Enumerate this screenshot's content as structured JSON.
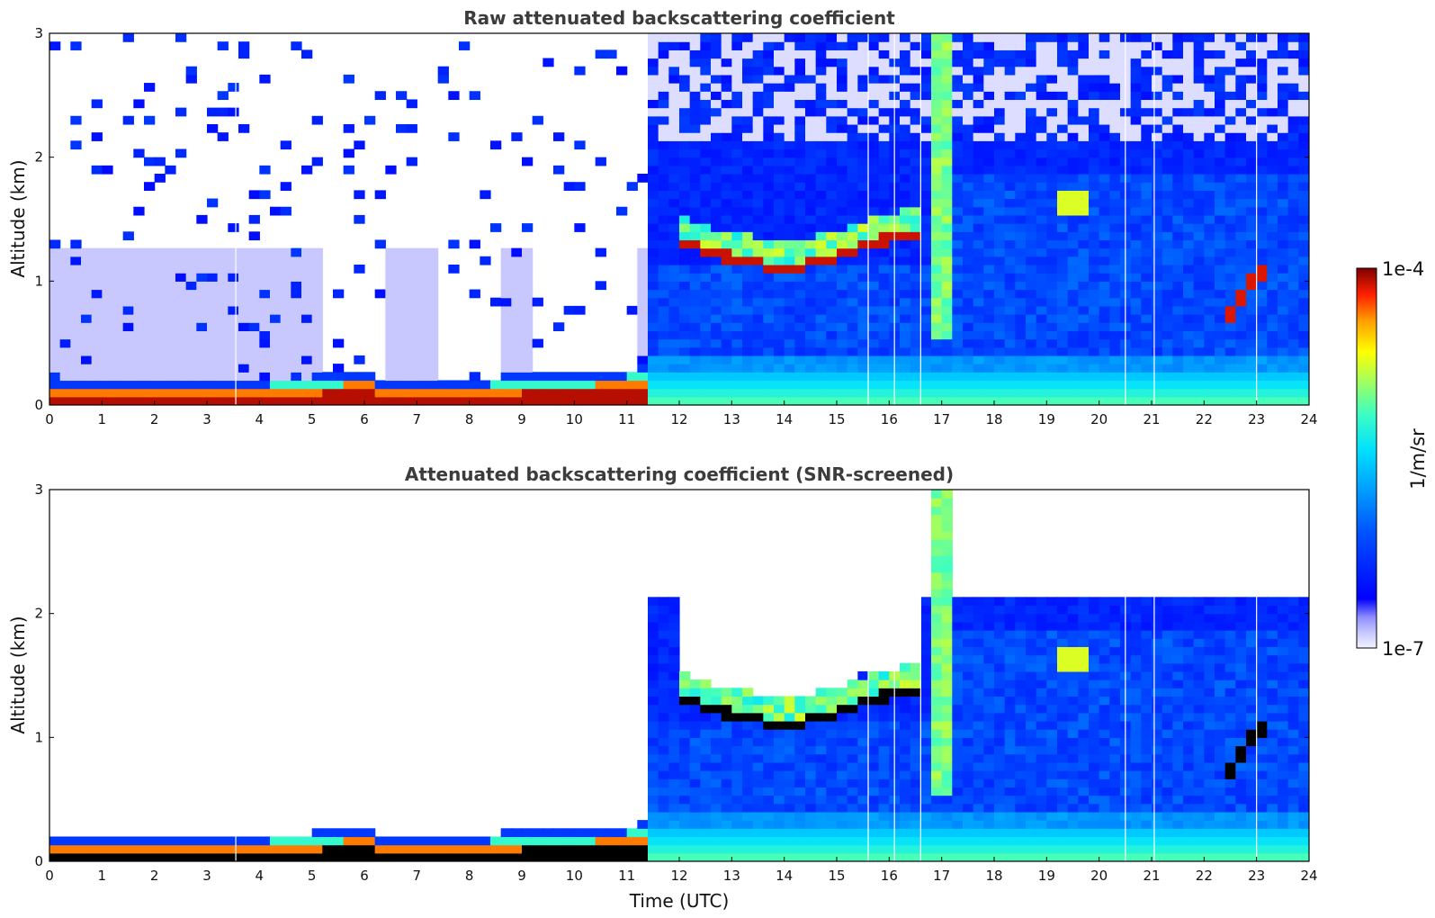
{
  "chart_data": [
    {
      "type": "heatmap",
      "title": "Raw attenuated backscattering coefficient",
      "xlabel": "",
      "ylabel": "Altitude (km)",
      "xlim": [
        0,
        24
      ],
      "ylim": [
        0,
        3
      ],
      "xticks": [
        "0",
        "1",
        "2",
        "3",
        "4",
        "5",
        "6",
        "7",
        "8",
        "9",
        "10",
        "11",
        "12",
        "13",
        "14",
        "15",
        "16",
        "17",
        "18",
        "19",
        "20",
        "21",
        "22",
        "23",
        "24"
      ],
      "yticks": [
        "0",
        "1",
        "2",
        "3"
      ],
      "screened": false
    },
    {
      "type": "heatmap",
      "title": "Attenuated backscattering coefficient (SNR-screened)",
      "xlabel": "Time (UTC)",
      "ylabel": "Altitude (km)",
      "xlim": [
        0,
        24
      ],
      "ylim": [
        0,
        3
      ],
      "xticks": [
        "0",
        "1",
        "2",
        "3",
        "4",
        "5",
        "6",
        "7",
        "8",
        "9",
        "10",
        "11",
        "12",
        "13",
        "14",
        "15",
        "16",
        "17",
        "18",
        "19",
        "20",
        "21",
        "22",
        "23",
        "24"
      ],
      "yticks": [
        "0",
        "1",
        "2",
        "3"
      ],
      "screened": true
    }
  ],
  "colorbar": {
    "label": "1/m/sr",
    "max_label": "1e-4",
    "min_label": "1e-7",
    "range": [
      1e-07,
      0.0001
    ],
    "scale": "log",
    "colormap": "jet"
  },
  "features": {
    "aerosol_layer_top_km": [
      [
        0,
        0.15
      ],
      [
        5,
        0.17
      ],
      [
        6,
        0.24
      ],
      [
        6.4,
        0.14
      ],
      [
        8,
        0.16
      ],
      [
        11,
        0.22
      ],
      [
        11.4,
        0.28
      ]
    ],
    "cloud_base_km": [
      [
        12,
        1.3
      ],
      [
        12.5,
        1.2
      ],
      [
        13,
        1.15
      ],
      [
        13.5,
        1.1
      ],
      [
        14,
        1.05
      ],
      [
        14.5,
        1.1
      ],
      [
        15,
        1.15
      ],
      [
        15.5,
        1.25
      ],
      [
        16,
        1.3
      ],
      [
        16.5,
        1.35
      ]
    ],
    "vertical_plume_hours": [
      16.9,
      17.1
    ],
    "dropouts_hours": [
      3.55,
      15.6,
      16.1,
      16.6,
      20.5,
      21.05,
      23.0
    ]
  }
}
